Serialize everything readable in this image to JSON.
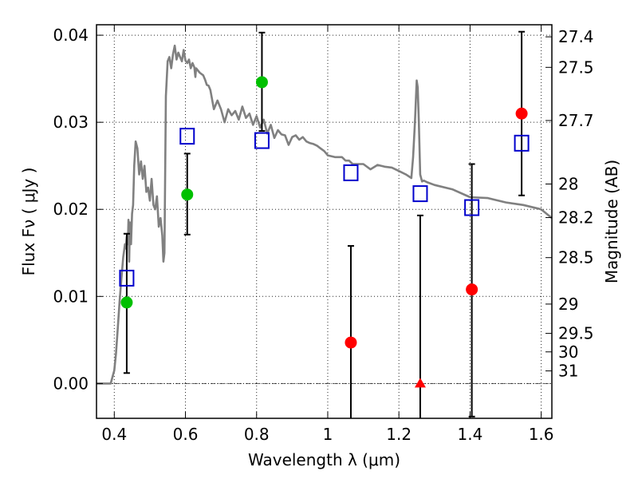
{
  "chart_data": {
    "type": "scatter",
    "xlabel": "Wavelength  λ (μm)",
    "ylabel": "Flux  Fν ( μJy )",
    "y2label": "Magnitude (AB)",
    "xlim": [
      0.35,
      1.63
    ],
    "ylim": [
      -0.004,
      0.0412
    ],
    "grid": true,
    "x_ticks": [
      {
        "value": 0.4,
        "label": "0.4"
      },
      {
        "value": 0.6,
        "label": "0.6"
      },
      {
        "value": 0.8,
        "label": "0.8"
      },
      {
        "value": 1.0,
        "label": "1"
      },
      {
        "value": 1.2,
        "label": "1.2"
      },
      {
        "value": 1.4,
        "label": "1.4"
      },
      {
        "value": 1.6,
        "label": "1.6"
      }
    ],
    "y_ticks": [
      {
        "value": 0.0,
        "label": "0.00"
      },
      {
        "value": 0.01,
        "label": "0.01"
      },
      {
        "value": 0.02,
        "label": "0.02"
      },
      {
        "value": 0.03,
        "label": "0.03"
      },
      {
        "value": 0.04,
        "label": "0.04"
      }
    ],
    "y2_ticks": [
      {
        "mag": 27.4,
        "label": "27.4"
      },
      {
        "mag": 27.5,
        "label": "27.5"
      },
      {
        "mag": 27.7,
        "label": "27.7"
      },
      {
        "mag": 28,
        "label": "28"
      },
      {
        "mag": 28.2,
        "label": "28.2"
      },
      {
        "mag": 28.5,
        "label": "28.5"
      },
      {
        "mag": 29,
        "label": "29"
      },
      {
        "mag": 29.5,
        "label": "29.5"
      },
      {
        "mag": 30,
        "label": "30"
      },
      {
        "mag": 31,
        "label": "31"
      }
    ],
    "zero_line": 0.0,
    "model_spectrum": {
      "color": "#808080",
      "x": [
        0.35,
        0.39,
        0.4,
        0.405,
        0.41,
        0.415,
        0.42,
        0.425,
        0.43,
        0.432,
        0.435,
        0.438,
        0.44,
        0.442,
        0.444,
        0.447,
        0.45,
        0.453,
        0.456,
        0.46,
        0.465,
        0.47,
        0.475,
        0.48,
        0.485,
        0.49,
        0.495,
        0.5,
        0.505,
        0.51,
        0.515,
        0.52,
        0.525,
        0.53,
        0.535,
        0.538,
        0.541,
        0.545,
        0.55,
        0.555,
        0.56,
        0.565,
        0.57,
        0.575,
        0.58,
        0.585,
        0.59,
        0.595,
        0.6,
        0.605,
        0.61,
        0.615,
        0.62,
        0.625,
        0.628,
        0.63,
        0.64,
        0.65,
        0.655,
        0.66,
        0.665,
        0.67,
        0.68,
        0.69,
        0.7,
        0.71,
        0.72,
        0.73,
        0.74,
        0.75,
        0.76,
        0.77,
        0.78,
        0.79,
        0.8,
        0.81,
        0.82,
        0.83,
        0.84,
        0.85,
        0.86,
        0.87,
        0.88,
        0.89,
        0.9,
        0.91,
        0.92,
        0.93,
        0.94,
        0.95,
        0.96,
        0.97,
        0.98,
        0.99,
        1.0,
        1.02,
        1.04,
        1.05,
        1.06,
        1.07,
        1.08,
        1.1,
        1.12,
        1.14,
        1.16,
        1.18,
        1.2,
        1.22,
        1.235,
        1.24,
        1.245,
        1.25,
        1.253,
        1.256,
        1.26,
        1.265,
        1.27,
        1.28,
        1.3,
        1.35,
        1.4,
        1.45,
        1.5,
        1.55,
        1.6,
        1.63
      ],
      "y": [
        0.0,
        0.0,
        0.0015,
        0.0035,
        0.0065,
        0.0095,
        0.012,
        0.0145,
        0.016,
        0.0155,
        0.0168,
        0.016,
        0.0188,
        0.014,
        0.0185,
        0.016,
        0.0195,
        0.0205,
        0.025,
        0.0278,
        0.027,
        0.024,
        0.0255,
        0.0235,
        0.025,
        0.022,
        0.0225,
        0.021,
        0.0235,
        0.0205,
        0.02,
        0.0215,
        0.018,
        0.019,
        0.017,
        0.014,
        0.015,
        0.033,
        0.037,
        0.0375,
        0.0362,
        0.0378,
        0.0388,
        0.0372,
        0.038,
        0.0375,
        0.037,
        0.0383,
        0.0371,
        0.0368,
        0.0372,
        0.0362,
        0.0368,
        0.0363,
        0.0352,
        0.0362,
        0.0357,
        0.0354,
        0.0349,
        0.0343,
        0.0342,
        0.0337,
        0.0315,
        0.0325,
        0.0315,
        0.03,
        0.0315,
        0.0308,
        0.0313,
        0.0303,
        0.0318,
        0.0305,
        0.031,
        0.0297,
        0.0307,
        0.0294,
        0.0303,
        0.0287,
        0.0297,
        0.0282,
        0.0291,
        0.0286,
        0.0285,
        0.0274,
        0.0283,
        0.0285,
        0.028,
        0.0283,
        0.0278,
        0.0276,
        0.0275,
        0.0273,
        0.027,
        0.0267,
        0.0262,
        0.026,
        0.026,
        0.0256,
        0.0256,
        0.0252,
        0.0252,
        0.0252,
        0.0246,
        0.0251,
        0.0249,
        0.0248,
        0.0244,
        0.024,
        0.0236,
        0.026,
        0.03,
        0.0348,
        0.034,
        0.03,
        0.024,
        0.0232,
        0.0233,
        0.0231,
        0.0228,
        0.0223,
        0.0214,
        0.0213,
        0.0208,
        0.0205,
        0.02,
        0.019
      ]
    },
    "series": [
      {
        "marker": "circle",
        "color": "#00c000",
        "points": [
          {
            "x": 0.435,
            "y": 0.0093
          },
          {
            "x": 0.605,
            "y": 0.0217
          },
          {
            "x": 0.815,
            "y": 0.0346
          }
        ]
      },
      {
        "marker": "circle",
        "color": "#ff0000",
        "points": [
          {
            "x": 1.065,
            "y": 0.0047
          },
          {
            "x": 1.405,
            "y": 0.0108
          },
          {
            "x": 1.545,
            "y": 0.031
          }
        ]
      },
      {
        "marker": "triangle",
        "color": "#ff0000",
        "points": [
          {
            "x": 1.26,
            "y": 0.0
          }
        ]
      },
      {
        "marker": "open-square",
        "color": "#0000cc",
        "points": [
          {
            "x": 0.435,
            "y": 0.0121
          },
          {
            "x": 0.605,
            "y": 0.0284
          },
          {
            "x": 0.815,
            "y": 0.0279
          },
          {
            "x": 1.065,
            "y": 0.0242
          },
          {
            "x": 1.26,
            "y": 0.0218
          },
          {
            "x": 1.405,
            "y": 0.0202
          },
          {
            "x": 1.545,
            "y": 0.0276
          }
        ]
      }
    ],
    "error_bars": [
      {
        "x": 0.435,
        "ylow": 0.0012,
        "yhigh": 0.0172
      },
      {
        "x": 0.605,
        "ylow": 0.0171,
        "yhigh": 0.0264
      },
      {
        "x": 0.815,
        "ylow": 0.029,
        "yhigh": 0.0403
      },
      {
        "x": 1.065,
        "ylow": -0.0045,
        "yhigh": 0.0158
      },
      {
        "x": 1.26,
        "ylow": -0.0045,
        "yhigh": 0.0193
      },
      {
        "x": 1.405,
        "ylow": -0.0038,
        "yhigh": 0.0252
      },
      {
        "x": 1.545,
        "ylow": 0.0216,
        "yhigh": 0.0404
      }
    ]
  }
}
